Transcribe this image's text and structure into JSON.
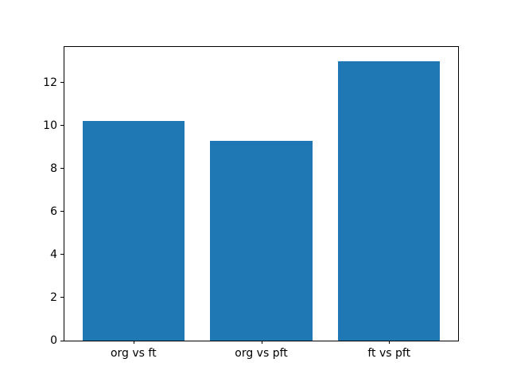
{
  "chart_data": {
    "type": "bar",
    "categories": [
      "org vs ft",
      "org vs pft",
      "ft vs pft"
    ],
    "values": [
      10.2,
      9.3,
      13.0
    ],
    "title": "",
    "xlabel": "",
    "ylabel": "",
    "yticks": [
      0,
      2,
      4,
      6,
      8,
      10,
      12
    ],
    "ylim": [
      0,
      13.65
    ],
    "xlim": [
      -0.54,
      2.54
    ],
    "bar_width": 0.8,
    "bar_color": "#1f77b4",
    "spine_color": "#000000",
    "background": "#ffffff",
    "grid": false,
    "legend": null
  }
}
